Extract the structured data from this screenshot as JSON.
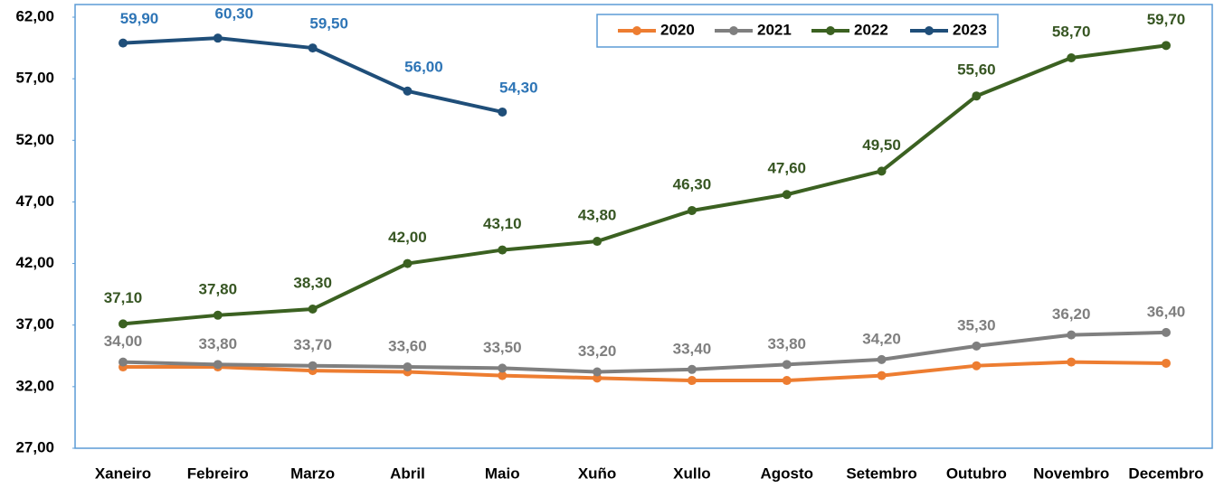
{
  "chart_data": {
    "type": "line",
    "categories": [
      "Xaneiro",
      "Febreiro",
      "Marzo",
      "Abril",
      "Maio",
      "Xuño",
      "Xullo",
      "Agosto",
      "Setembro",
      "Outubro",
      "Novembro",
      "Decembro"
    ],
    "series": [
      {
        "name": "2020",
        "color": "#ed7d31",
        "values": [
          33.6,
          33.6,
          33.3,
          33.2,
          32.9,
          32.7,
          32.5,
          32.5,
          32.9,
          33.7,
          34.0,
          33.9
        ]
      },
      {
        "name": "2021",
        "color": "#7f7f7f",
        "label_color": "#7f7f7f",
        "values": [
          34.0,
          33.8,
          33.7,
          33.6,
          33.5,
          33.2,
          33.4,
          33.8,
          34.2,
          35.3,
          36.2,
          36.4
        ],
        "value_labels": [
          "34,00",
          "33,80",
          "33,70",
          "33,60",
          "33,50",
          "33,20",
          "33,40",
          "33,80",
          "34,20",
          "35,30",
          "36,20",
          "36,40"
        ]
      },
      {
        "name": "2022",
        "color": "#3b6121",
        "label_color": "#375623",
        "values": [
          37.1,
          37.8,
          38.3,
          42.0,
          43.1,
          43.8,
          46.3,
          47.6,
          49.5,
          55.6,
          58.7,
          59.7
        ],
        "value_labels": [
          "37,10",
          "37,80",
          "38,30",
          "42,00",
          "43,10",
          "43,80",
          "46,30",
          "47,60",
          "49,50",
          "55,60",
          "58,70",
          "59,70"
        ]
      },
      {
        "name": "2023",
        "color": "#1f4e79",
        "label_color": "#2e75b6",
        "values": [
          59.9,
          60.3,
          59.5,
          56.0,
          54.3,
          null,
          null,
          null,
          null,
          null,
          null,
          null
        ],
        "value_labels": [
          "59,90",
          "60,30",
          "59,50",
          "56,00",
          "54,30",
          null,
          null,
          null,
          null,
          null,
          null,
          null
        ]
      }
    ],
    "ylim": [
      27,
      62
    ],
    "yticks": [
      {
        "value": 27,
        "label": "27,00"
      },
      {
        "value": 32,
        "label": "32,00"
      },
      {
        "value": 37,
        "label": "37,00"
      },
      {
        "value": 42,
        "label": "42,00"
      },
      {
        "value": 47,
        "label": "47,00"
      },
      {
        "value": 52,
        "label": "52,00"
      },
      {
        "value": 57,
        "label": "57,00"
      },
      {
        "value": 62,
        "label": "62,00"
      }
    ],
    "legend": "top-right",
    "grid": false
  }
}
